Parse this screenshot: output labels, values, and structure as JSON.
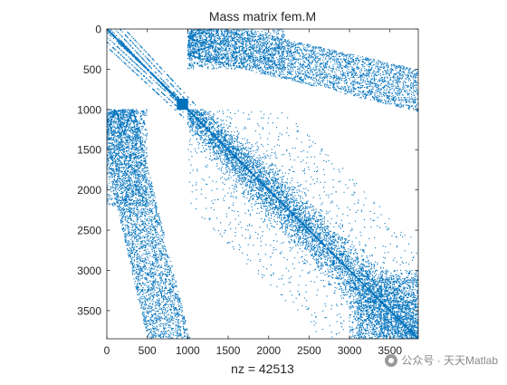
{
  "chart_data": {
    "type": "scatter",
    "title": "Mass matrix fem.M",
    "xlabel": "nz = 42513",
    "ylabel": "",
    "nz": 42513,
    "xlim": [
      0,
      3850
    ],
    "ylim": [
      0,
      3850
    ],
    "y_reversed": true,
    "grid": false,
    "x_ticks": [
      0,
      500,
      1000,
      1500,
      2000,
      2500,
      3000,
      3500
    ],
    "y_ticks": [
      0,
      500,
      1000,
      1500,
      2000,
      2500,
      3000,
      3500
    ],
    "x_tick_labels": [
      "0",
      "500",
      "1000",
      "1500",
      "2000",
      "2500",
      "3000",
      "3500"
    ],
    "y_tick_labels": [
      "0",
      "500",
      "1000",
      "1500",
      "2000",
      "2500",
      "3000",
      "3500"
    ],
    "marker_color": "#0072BD",
    "structure": {
      "main_diagonal": [
        0,
        3850
      ],
      "dense_block": {
        "rows": [
          870,
          1000
        ],
        "cols": [
          870,
          1000
        ]
      },
      "upper_right_band": {
        "rows": [
          0,
          1000
        ],
        "cols_start_range": [
          1000,
          3850
        ]
      },
      "lower_left_band": {
        "cols": [
          0,
          1000
        ],
        "rows_start_range": [
          1000,
          3850
        ]
      }
    }
  },
  "watermark": {
    "text": "公众号 · 天天Matlab"
  }
}
